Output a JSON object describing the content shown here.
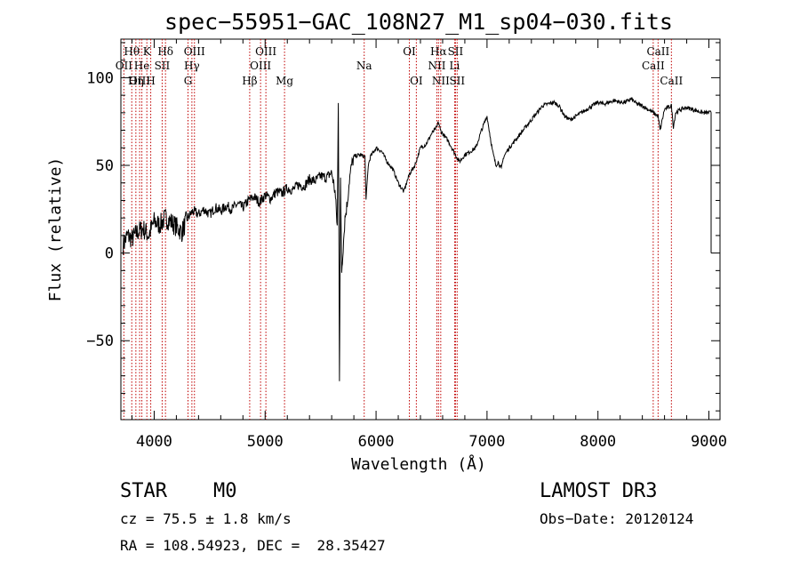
{
  "chart_data": {
    "type": "line",
    "title": "spec−55951−GAC_108N27_M1_sp04−030.fits",
    "xlabel": "Wavelength (Å)",
    "ylabel": "Flux (relative)",
    "xlim": [
      3700,
      9100
    ],
    "ylim": [
      -95,
      122
    ],
    "xticks": [
      4000,
      5000,
      6000,
      7000,
      8000,
      9000
    ],
    "yticks": [
      -50,
      0,
      50,
      100
    ],
    "ytick_labels": [
      "−50",
      "0",
      "50",
      "100"
    ],
    "series": [
      {
        "name": "flux",
        "x": [
          3720,
          3760,
          3800,
          3850,
          3900,
          3950,
          4000,
          4050,
          4100,
          4150,
          4200,
          4250,
          4300,
          4350,
          4400,
          4450,
          4500,
          4550,
          4600,
          4650,
          4700,
          4750,
          4800,
          4850,
          4900,
          4950,
          5000,
          5050,
          5100,
          5150,
          5200,
          5250,
          5300,
          5350,
          5400,
          5450,
          5500,
          5550,
          5600,
          5630,
          5650,
          5660,
          5670,
          5680,
          5690,
          5700,
          5720,
          5740,
          5760,
          5780,
          5800,
          5850,
          5900,
          5910,
          5930,
          5950,
          6000,
          6050,
          6100,
          6150,
          6200,
          6250,
          6300,
          6350,
          6400,
          6450,
          6500,
          6550,
          6562,
          6580,
          6600,
          6650,
          6700,
          6750,
          6800,
          6850,
          6900,
          6950,
          7000,
          7050,
          7080,
          7100,
          7130,
          7150,
          7200,
          7250,
          7300,
          7350,
          7400,
          7450,
          7500,
          7550,
          7600,
          7650,
          7700,
          7750,
          7800,
          7850,
          7900,
          7950,
          8000,
          8050,
          8100,
          8150,
          8200,
          8250,
          8300,
          8350,
          8400,
          8450,
          8500,
          8542,
          8560,
          8600,
          8662,
          8680,
          8700,
          8750,
          8800,
          8850,
          8900,
          8950,
          9000,
          9020
        ],
        "values": [
          5,
          10,
          8,
          12,
          14,
          10,
          18,
          16,
          20,
          18,
          15,
          12,
          20,
          24,
          22,
          25,
          22,
          26,
          24,
          27,
          25,
          28,
          26,
          30,
          32,
          29,
          33,
          31,
          35,
          34,
          37,
          36,
          39,
          38,
          42,
          41,
          44,
          43,
          46,
          35,
          15,
          85,
          -70,
          40,
          -10,
          0,
          20,
          28,
          42,
          50,
          55,
          56,
          55,
          30,
          50,
          55,
          60,
          58,
          52,
          48,
          40,
          35,
          45,
          50,
          60,
          62,
          68,
          72,
          75,
          70,
          68,
          64,
          58,
          52,
          56,
          58,
          60,
          70,
          78,
          58,
          50,
          52,
          48,
          55,
          60,
          64,
          68,
          72,
          76,
          80,
          84,
          85,
          86,
          84,
          78,
          76,
          78,
          80,
          82,
          84,
          86,
          85,
          86,
          87,
          86,
          86,
          88,
          85,
          84,
          82,
          80,
          78,
          70,
          82,
          84,
          72,
          80,
          82,
          83,
          82,
          81,
          80,
          80,
          80
        ]
      }
    ],
    "line_markers": [
      {
        "label": "Hθ",
        "x": 3798,
        "row": 1
      },
      {
        "label": "OII",
        "x": 3727,
        "row": 2
      },
      {
        "label": "OIII",
        "x": 3869,
        "row": 3
      },
      {
        "label": "He",
        "x": 3889,
        "row": 2
      },
      {
        "label": "K",
        "x": 3934,
        "row": 1
      },
      {
        "label": "Hη",
        "x": 3835,
        "row": 3
      },
      {
        "label": "SII",
        "x": 4072,
        "row": 2
      },
      {
        "label": "H",
        "x": 3969,
        "row": 3
      },
      {
        "label": "Hδ",
        "x": 4102,
        "row": 1
      },
      {
        "label": "OIII",
        "x": 4363,
        "row": 1
      },
      {
        "label": "Hγ",
        "x": 4340,
        "row": 2
      },
      {
        "label": "G",
        "x": 4305,
        "row": 3
      },
      {
        "label": "Hβ",
        "x": 4861,
        "row": 3
      },
      {
        "label": "OIII",
        "x": 5007,
        "row": 1
      },
      {
        "label": "OIII",
        "x": 4959,
        "row": 2
      },
      {
        "label": "Mg",
        "x": 5175,
        "row": 3
      },
      {
        "label": "Na",
        "x": 5893,
        "row": 2
      },
      {
        "label": "OI",
        "x": 6300,
        "row": 1
      },
      {
        "label": "OI",
        "x": 6363,
        "row": 3
      },
      {
        "label": "Hα",
        "x": 6563,
        "row": 1
      },
      {
        "label": "NII",
        "x": 6548,
        "row": 2
      },
      {
        "label": "NII",
        "x": 6583,
        "row": 3
      },
      {
        "label": "SII",
        "x": 6716,
        "row": 1
      },
      {
        "label": "Li",
        "x": 6708,
        "row": 2
      },
      {
        "label": "SII",
        "x": 6731,
        "row": 3
      },
      {
        "label": "CaII",
        "x": 8542,
        "row": 1
      },
      {
        "label": "CaII",
        "x": 8498,
        "row": 2
      },
      {
        "label": "CaII",
        "x": 8662,
        "row": 3
      }
    ]
  },
  "info": {
    "object_class": "STAR",
    "subclass": "M0",
    "survey": "LAMOST DR3",
    "cz": "cz = 75.5 ± 1.8 km/s",
    "obs_date": "Obs−Date: 20120124",
    "coords": "RA = 108.54923, DEC =  28.35427"
  },
  "colors": {
    "spectrum": "#000000",
    "markers": "#c00000",
    "axes": "#000000"
  }
}
